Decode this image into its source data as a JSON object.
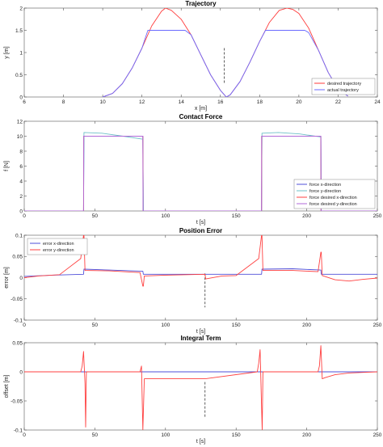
{
  "chart_data": [
    {
      "type": "line",
      "title": "Trajectory",
      "xlabel": "x [m]",
      "ylabel": "y [m]",
      "xlim": [
        6,
        24
      ],
      "ylim": [
        0,
        2
      ],
      "xticks": [
        6,
        8,
        10,
        12,
        14,
        16,
        18,
        20,
        22,
        24
      ],
      "yticks": [
        0,
        0.5,
        1,
        1.5,
        2
      ],
      "grid": false,
      "legend_position": "bottom-right",
      "marker_x": 16.2,
      "series": [
        {
          "name": "desired trajectory",
          "color": "#ff3b3b",
          "x": [
            10,
            10.5,
            11,
            11.5,
            12,
            12.5,
            13,
            13.2,
            13.5,
            14,
            14.5,
            15,
            15.5,
            16,
            16.3,
            16.5,
            17,
            17.5,
            18,
            18.5,
            19,
            19.4,
            19.7,
            20,
            20.5,
            21,
            21.5,
            22,
            22.5
          ],
          "y": [
            0,
            0.08,
            0.3,
            0.65,
            1.1,
            1.6,
            1.93,
            2.0,
            1.95,
            1.75,
            1.4,
            0.95,
            0.5,
            0.15,
            0.0,
            0.05,
            0.35,
            0.78,
            1.25,
            1.68,
            1.95,
            2.0,
            1.97,
            1.88,
            1.55,
            1.05,
            0.55,
            0.18,
            0.02
          ]
        },
        {
          "name": "actual trajectory",
          "color": "#6b6bff",
          "x": [
            10,
            10.5,
            11,
            11.5,
            12,
            12.3,
            14.2,
            14.5,
            15,
            15.5,
            16,
            16.3,
            16.5,
            17,
            17.5,
            18,
            18.3,
            20.3,
            20.5,
            21,
            21.5,
            22,
            22.5
          ],
          "y": [
            0,
            0.08,
            0.3,
            0.65,
            1.1,
            1.5,
            1.5,
            1.4,
            0.95,
            0.5,
            0.15,
            0.0,
            0.05,
            0.35,
            0.78,
            1.25,
            1.5,
            1.5,
            1.45,
            1.05,
            0.55,
            0.18,
            0.02
          ]
        }
      ]
    },
    {
      "type": "line",
      "title": "Contact Force",
      "xlabel": "t [s]",
      "ylabel": "f [N]",
      "xlim": [
        0,
        250
      ],
      "ylim": [
        0,
        12
      ],
      "xticks": [
        0,
        50,
        100,
        150,
        200,
        250
      ],
      "yticks": [
        0,
        2,
        4,
        6,
        8,
        10,
        12
      ],
      "grid": false,
      "legend_position": "bottom-right",
      "series": [
        {
          "name": "force x-direction",
          "color": "#4f4fd9",
          "x": [
            0,
            42,
            42.3,
            84,
            84.3,
            168,
            168.3,
            210,
            210.3,
            250
          ],
          "y": [
            0,
            0,
            10.0,
            10.0,
            0,
            0,
            10.0,
            10.0,
            0,
            0
          ]
        },
        {
          "name": "force y-direction",
          "color": "#6ec0c8",
          "x": [
            0,
            42,
            42.3,
            55,
            70,
            84,
            84.3,
            168,
            168.3,
            180,
            195,
            210,
            210.3,
            250
          ],
          "y": [
            0,
            0,
            10.5,
            10.4,
            10.0,
            9.6,
            0,
            0,
            10.4,
            10.5,
            10.3,
            9.9,
            0,
            0
          ]
        },
        {
          "name": "force desired x-direction",
          "color": "#ff4040",
          "x": [
            0,
            42,
            42.1,
            84,
            84.1,
            168,
            168.1,
            210,
            210.1,
            250
          ],
          "y": [
            0,
            0,
            10,
            10,
            0,
            0,
            10,
            10,
            0,
            0
          ]
        },
        {
          "name": "force desired y-direction",
          "color": "#b06ad8",
          "x": [
            0,
            42,
            42.1,
            84,
            84.1,
            168,
            168.1,
            210,
            210.1,
            250
          ],
          "y": [
            0,
            0,
            10,
            10,
            0,
            0,
            10,
            10,
            0,
            0
          ]
        }
      ]
    },
    {
      "type": "line",
      "title": "Position Error",
      "xlabel": "t [s]",
      "ylabel": "error [m]",
      "xlim": [
        0,
        250
      ],
      "ylim": [
        -0.1,
        0.1
      ],
      "xticks": [
        0,
        50,
        100,
        150,
        200,
        250
      ],
      "yticks": [
        -0.1,
        -0.05,
        0,
        0.05,
        0.1
      ],
      "grid": false,
      "legend_position": "top-left",
      "marker_x": 128,
      "series": [
        {
          "name": "error x-direction",
          "color": "#4f4fd9",
          "x": [
            0,
            20,
            42,
            42.3,
            60,
            84,
            84.3,
            110,
            128,
            140,
            168,
            168.3,
            190,
            210,
            210.3,
            250
          ],
          "y": [
            0.003,
            0.006,
            0.008,
            0.02,
            0.018,
            0.015,
            0.008,
            0.008,
            0.008,
            0.008,
            0.008,
            0.02,
            0.021,
            0.018,
            0.008,
            0.008
          ]
        },
        {
          "name": "error y-direction",
          "color": "#ff4040",
          "x": [
            0,
            10,
            25,
            40,
            42,
            42.3,
            43,
            60,
            82,
            84,
            84.3,
            85,
            100,
            128,
            128.5,
            140,
            150,
            166,
            168,
            168.3,
            169,
            190,
            208,
            210,
            210.3,
            211,
            220,
            230,
            240,
            250
          ],
          "y": [
            0.0,
            0.004,
            0.007,
            0.045,
            0.1,
            0.1,
            0.017,
            0.016,
            0.012,
            -0.02,
            -0.02,
            0.004,
            0.006,
            0.008,
            -0.003,
            0.004,
            0.005,
            0.045,
            0.1,
            0.1,
            0.017,
            0.017,
            0.014,
            0.06,
            0.06,
            0.005,
            -0.005,
            -0.008,
            -0.004,
            -0.001
          ]
        }
      ]
    },
    {
      "type": "line",
      "title": "Integral Term",
      "xlabel": "t [s]",
      "ylabel": "offset [m]",
      "xlim": [
        0,
        250
      ],
      "ylim": [
        -0.1,
        0.05
      ],
      "xticks": [
        0,
        50,
        100,
        150,
        200,
        250
      ],
      "yticks": [
        -0.1,
        -0.05,
        0,
        0.05
      ],
      "grid": false,
      "legend_position": "none",
      "marker_x": 128,
      "series": [
        {
          "name": "",
          "color": "#4f4fd9",
          "x": [
            0,
            250
          ],
          "y": [
            0,
            0
          ]
        },
        {
          "name": "",
          "color": "#ff4040",
          "x": [
            0,
            40,
            41,
            42,
            43,
            43.5,
            44,
            82,
            83,
            84,
            85,
            86,
            128,
            165,
            166,
            167,
            168,
            168.5,
            169,
            208,
            209,
            210,
            211,
            213,
            220,
            230,
            240,
            250
          ],
          "y": [
            0,
            0,
            0.01,
            0.035,
            -0.02,
            -0.095,
            0,
            0,
            0.01,
            -0.1,
            -0.012,
            -0.012,
            -0.012,
            0,
            0.015,
            0.038,
            -0.06,
            -0.1,
            0,
            0,
            0.01,
            0.045,
            -0.012,
            -0.01,
            -0.005,
            -0.002,
            -0.001,
            0
          ]
        }
      ]
    }
  ]
}
